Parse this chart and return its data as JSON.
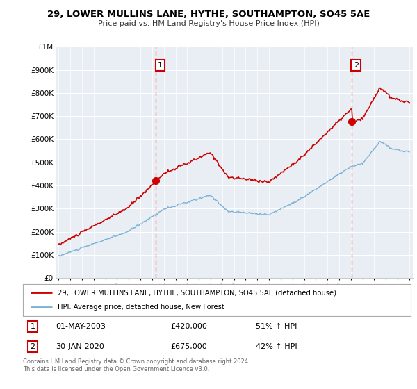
{
  "title": "29, LOWER MULLINS LANE, HYTHE, SOUTHAMPTON, SO45 5AE",
  "subtitle": "Price paid vs. HM Land Registry's House Price Index (HPI)",
  "bg_color": "#ffffff",
  "chart_bg": "#e8eef4",
  "grid_color": "#ffffff",
  "sale1": {
    "date_num": 2003.33,
    "price": 420000,
    "label": "1"
  },
  "sale2": {
    "date_num": 2020.08,
    "price": 675000,
    "label": "2"
  },
  "sale1_text": "01-MAY-2003",
  "sale1_price": "£420,000",
  "sale1_hpi": "51% ↑ HPI",
  "sale2_text": "30-JAN-2020",
  "sale2_price": "£675,000",
  "sale2_hpi": "42% ↑ HPI",
  "legend_line1": "29, LOWER MULLINS LANE, HYTHE, SOUTHAMPTON, SO45 5AE (detached house)",
  "legend_line2": "HPI: Average price, detached house, New Forest",
  "footer": "Contains HM Land Registry data © Crown copyright and database right 2024.\nThis data is licensed under the Open Government Licence v3.0.",
  "line_color_red": "#cc0000",
  "line_color_blue": "#7ab0d4",
  "dashed_color": "#ff6666",
  "ylim": [
    0,
    1000000
  ],
  "xlim_start": 1994.8,
  "xlim_end": 2025.3
}
